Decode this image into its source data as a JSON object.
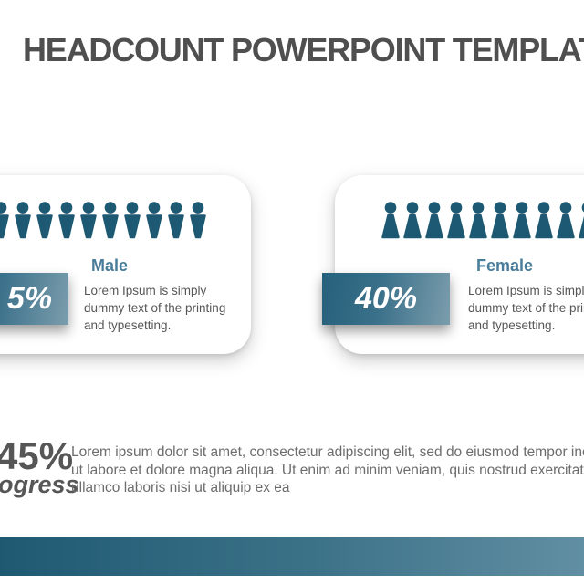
{
  "slide": {
    "title": "HEADCOUNT POWERPOINT TEMPLATE"
  },
  "cards": [
    {
      "id": "male",
      "heading": "Male",
      "percent": "5%",
      "icon_count": 10,
      "description_lines": [
        "Lorem Ipsum is simply",
        "dummy text of the printing",
        "and typesetting."
      ]
    },
    {
      "id": "female",
      "heading": "Female",
      "percent": "40%",
      "icon_count": 10,
      "description_lines": [
        "Lorem Ipsum is simply",
        "dummy text of the printing",
        "and typesetting."
      ]
    }
  ],
  "summary": {
    "percent": "45%",
    "caption": "ogress",
    "lines": [
      "Lorem ipsum dolor sit amet, consectetur adipiscing elit, sed do eiusmod tempor inci",
      "ut labore et dolore magna aliqua. Ut enim ad minim veniam, quis nostrud exercitatio",
      "ullamco laboris nisi ut aliquip ex ea"
    ]
  },
  "colors": {
    "icon_teal": "#1d5972",
    "heading_teal": "#4a7d99",
    "percent_box_gradient_start": "#26607a",
    "percent_box_gradient_end": "#7b9dac",
    "bottom_bar_gradient_start": "#1e5972",
    "bottom_bar_gradient_end": "#618ea2",
    "title_gray": "#4f4f4f",
    "body_gray": "#575757"
  }
}
